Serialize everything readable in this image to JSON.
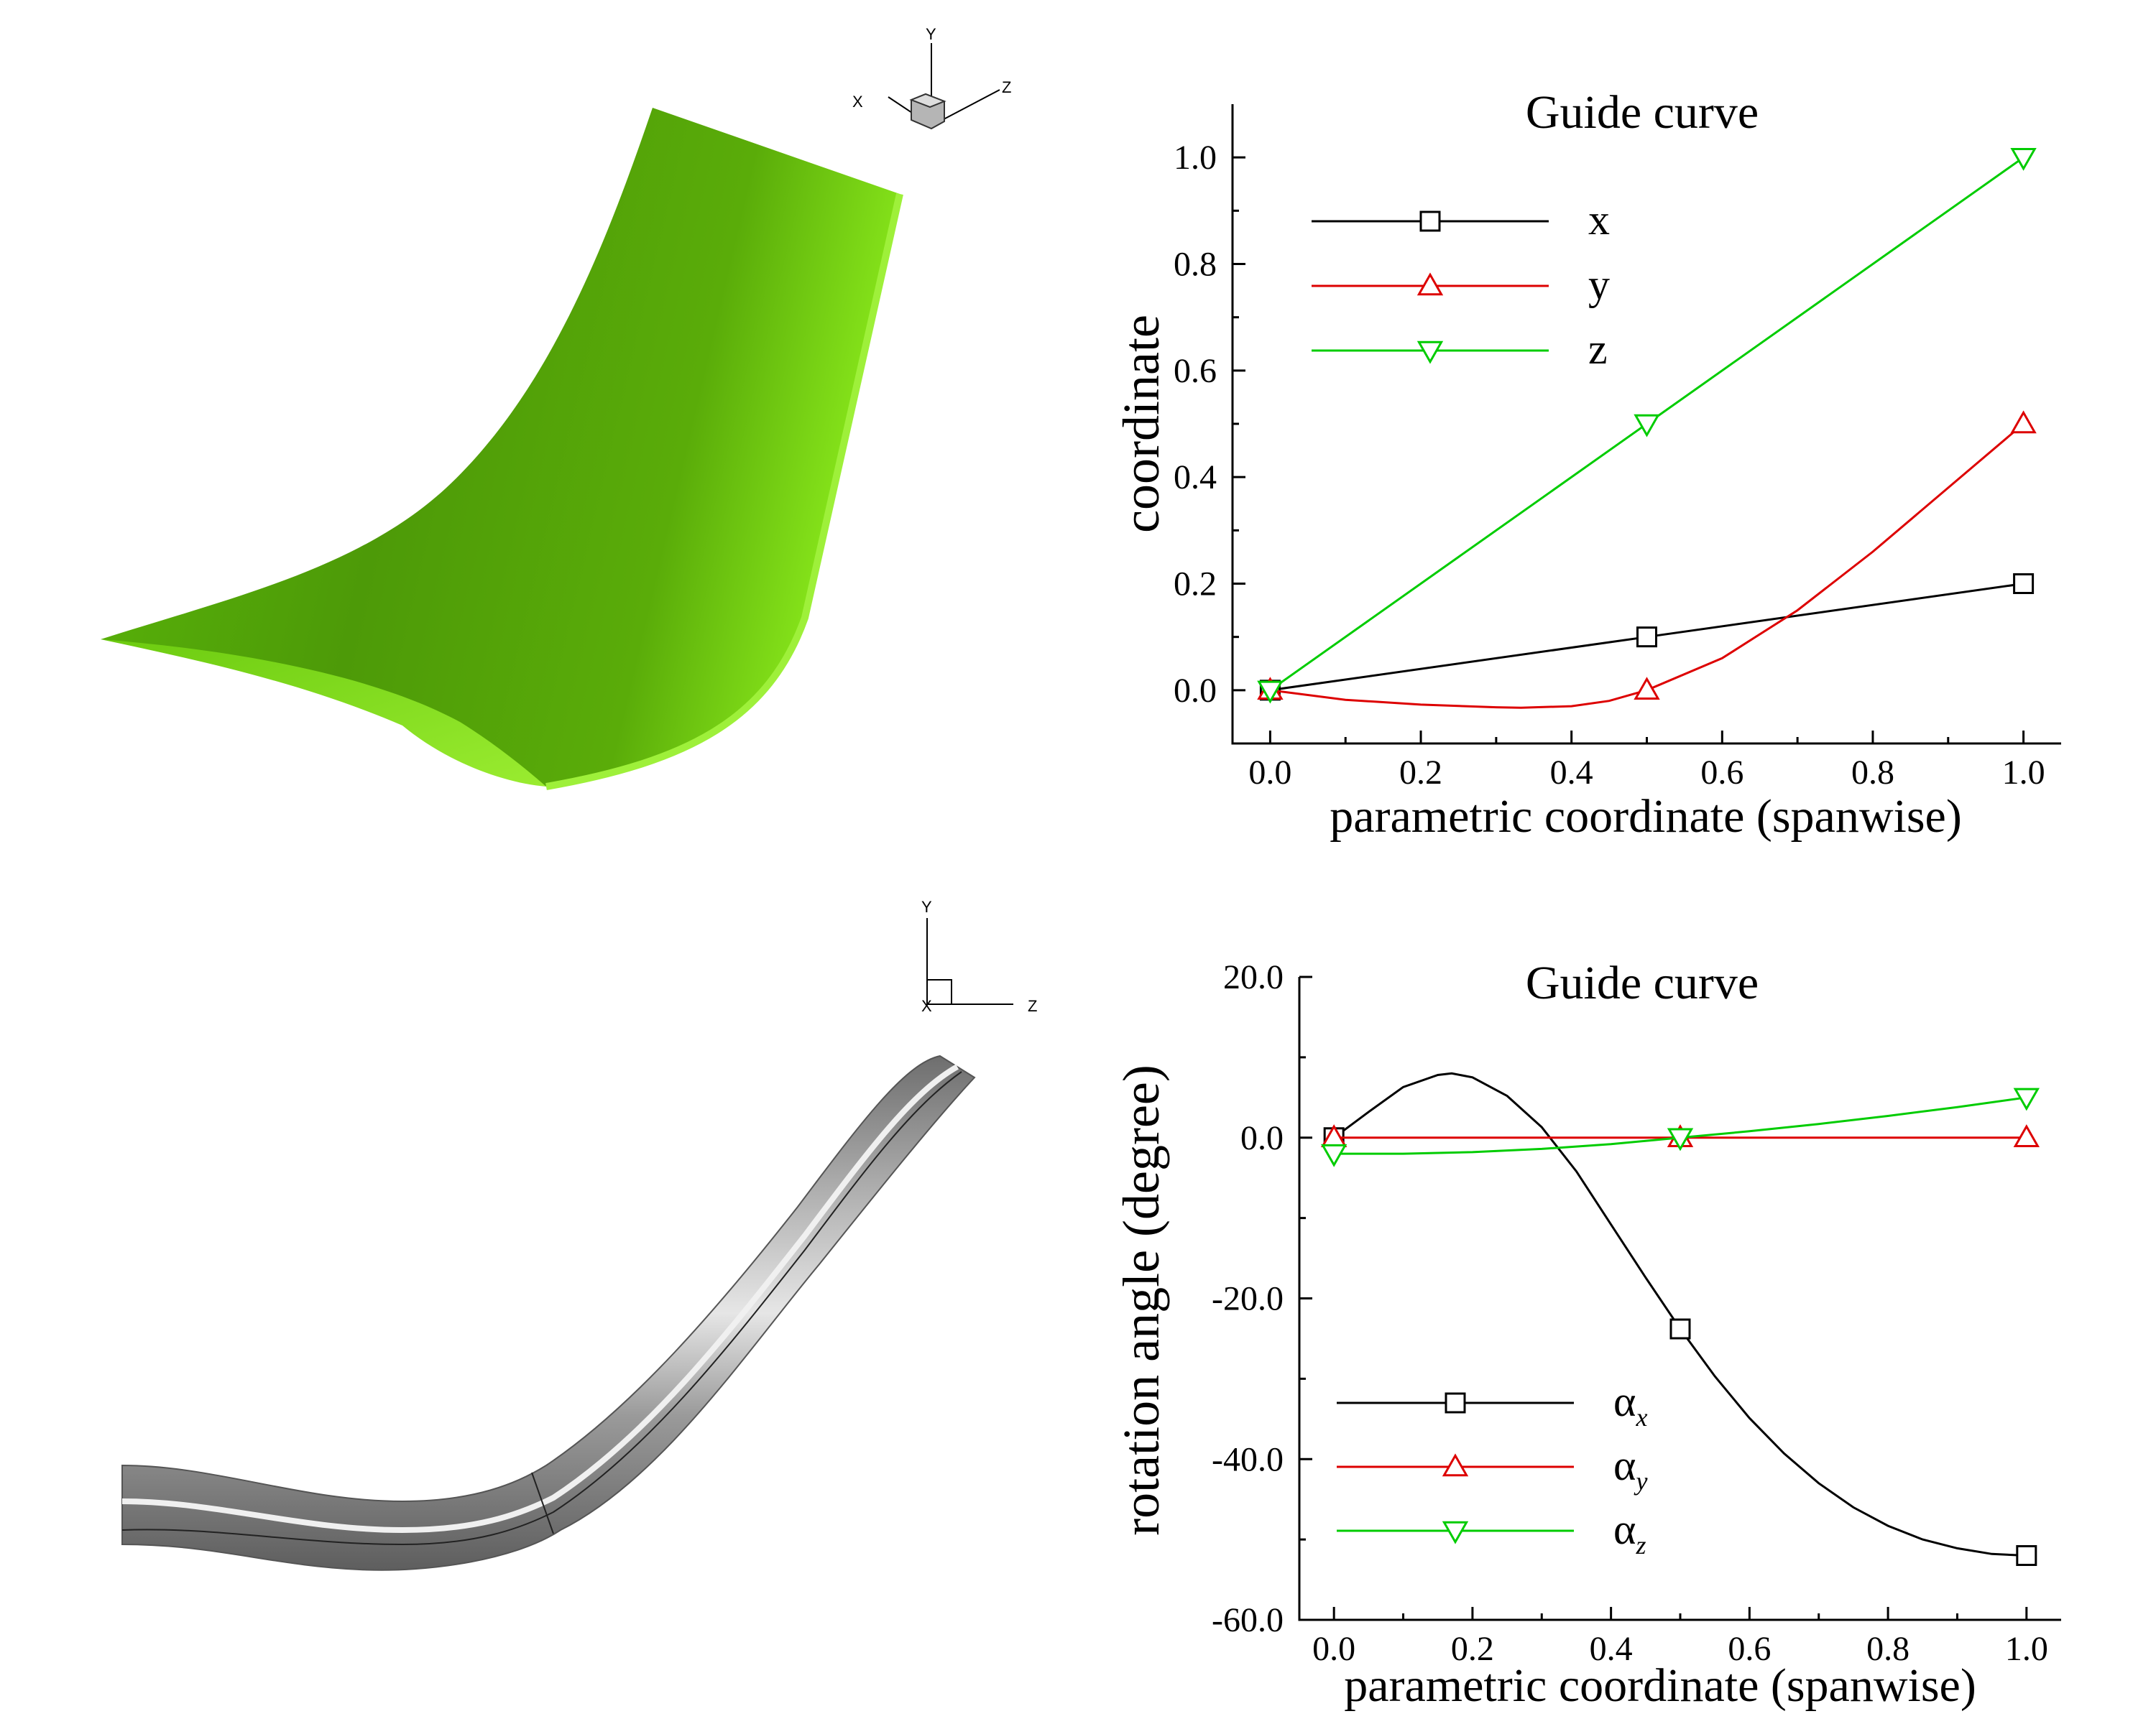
{
  "triads": {
    "top": {
      "y": "Y",
      "x": "X",
      "z": "Z"
    },
    "bottom": {
      "y": "Y",
      "x": "X",
      "z": "Z"
    }
  },
  "colors": {
    "x": "#000000",
    "y": "#dd0000",
    "z": "#00cc00",
    "surface_green": "#6cc70b",
    "tube_gray": "#8a8a8a"
  },
  "chart_data": [
    {
      "type": "line",
      "title": "Guide curve",
      "xlabel": "parametric coordinate (spanwise)",
      "ylabel": "coordinate",
      "xlim": [
        -0.05,
        1.05
      ],
      "ylim": [
        -0.1,
        1.1
      ],
      "xticks": [
        0.0,
        0.2,
        0.4,
        0.6,
        0.8,
        1.0
      ],
      "xtick_labels": [
        "0.0",
        "0.2",
        "0.4",
        "0.6",
        "0.8",
        "1.0"
      ],
      "yticks": [
        0.0,
        0.2,
        0.4,
        0.6,
        0.8,
        1.0
      ],
      "ytick_labels": [
        "0.0",
        "0.2",
        "0.4",
        "0.6",
        "0.8",
        "1.0"
      ],
      "legend_position": "top-left",
      "series": [
        {
          "name": "x",
          "marker": "square",
          "color": "#000000",
          "points": [
            [
              0.0,
              0.0
            ],
            [
              0.5,
              0.1
            ],
            [
              1.0,
              0.2
            ]
          ],
          "curve": [
            [
              0.0,
              0.0
            ],
            [
              0.5,
              0.1
            ],
            [
              1.0,
              0.2
            ]
          ]
        },
        {
          "name": "y",
          "marker": "triangle-up",
          "color": "#dd0000",
          "points": [
            [
              0.0,
              0.0
            ],
            [
              0.5,
              0.0
            ],
            [
              1.0,
              0.5
            ]
          ],
          "curve": [
            [
              0.0,
              0.0
            ],
            [
              0.1,
              -0.018
            ],
            [
              0.2,
              -0.027
            ],
            [
              0.3,
              -0.032
            ],
            [
              0.333,
              -0.033
            ],
            [
              0.4,
              -0.03
            ],
            [
              0.45,
              -0.02
            ],
            [
              0.5,
              0.0
            ],
            [
              0.6,
              0.06
            ],
            [
              0.7,
              0.15
            ],
            [
              0.8,
              0.26
            ],
            [
              0.9,
              0.38
            ],
            [
              1.0,
              0.5
            ]
          ]
        },
        {
          "name": "z",
          "marker": "triangle-down",
          "color": "#00cc00",
          "points": [
            [
              0.0,
              0.0
            ],
            [
              0.5,
              0.5
            ],
            [
              1.0,
              1.0
            ]
          ],
          "curve": [
            [
              0.0,
              0.0
            ],
            [
              0.5,
              0.5
            ],
            [
              1.0,
              1.0
            ]
          ]
        }
      ]
    },
    {
      "type": "line",
      "title": "Guide curve",
      "xlabel": "parametric coordinate (spanwise)",
      "ylabel": "rotation angle (degree)",
      "xlim": [
        -0.05,
        1.05
      ],
      "ylim": [
        -60,
        20
      ],
      "xticks": [
        0.0,
        0.2,
        0.4,
        0.6,
        0.8,
        1.0
      ],
      "xtick_labels": [
        "0.0",
        "0.2",
        "0.4",
        "0.6",
        "0.8",
        "1.0"
      ],
      "yticks": [
        -60,
        -40,
        -20,
        0,
        20
      ],
      "ytick_labels": [
        "-60.0",
        "-40.0",
        "-20.0",
        "0.0",
        "20.0"
      ],
      "legend_position": "bottom-left",
      "series": [
        {
          "name": "α",
          "subscript": "x",
          "marker": "square",
          "color": "#000000",
          "points": [
            [
              0.0,
              0.0
            ],
            [
              0.5,
              -23.8
            ],
            [
              1.0,
              -52.0
            ]
          ],
          "curve": [
            [
              0.0,
              0.0
            ],
            [
              0.05,
              3.2
            ],
            [
              0.1,
              6.3
            ],
            [
              0.15,
              7.8
            ],
            [
              0.17,
              8.0
            ],
            [
              0.2,
              7.5
            ],
            [
              0.25,
              5.2
            ],
            [
              0.3,
              1.3
            ],
            [
              0.35,
              -4.2
            ],
            [
              0.4,
              -10.8
            ],
            [
              0.45,
              -17.4
            ],
            [
              0.5,
              -23.8
            ],
            [
              0.55,
              -29.7
            ],
            [
              0.6,
              -34.9
            ],
            [
              0.65,
              -39.3
            ],
            [
              0.7,
              -43.0
            ],
            [
              0.75,
              -46.0
            ],
            [
              0.8,
              -48.3
            ],
            [
              0.85,
              -50.0
            ],
            [
              0.9,
              -51.1
            ],
            [
              0.95,
              -51.8
            ],
            [
              1.0,
              -52.0
            ]
          ]
        },
        {
          "name": "α",
          "subscript": "y",
          "marker": "triangle-up",
          "color": "#dd0000",
          "points": [
            [
              0.0,
              0.0
            ],
            [
              0.5,
              0.0
            ],
            [
              1.0,
              0.0
            ]
          ],
          "curve": [
            [
              0.0,
              0.0
            ],
            [
              1.0,
              0.0
            ]
          ]
        },
        {
          "name": "α",
          "subscript": "z",
          "marker": "triangle-down",
          "color": "#00cc00",
          "points": [
            [
              0.0,
              -2.0
            ],
            [
              0.5,
              0.0
            ],
            [
              1.0,
              5.0
            ]
          ],
          "curve": [
            [
              0.0,
              -2.0
            ],
            [
              0.1,
              -2.0
            ],
            [
              0.2,
              -1.8
            ],
            [
              0.3,
              -1.4
            ],
            [
              0.4,
              -0.8
            ],
            [
              0.5,
              0.0
            ],
            [
              0.6,
              0.8
            ],
            [
              0.7,
              1.7
            ],
            [
              0.8,
              2.7
            ],
            [
              0.9,
              3.8
            ],
            [
              1.0,
              5.0
            ]
          ]
        }
      ]
    }
  ]
}
